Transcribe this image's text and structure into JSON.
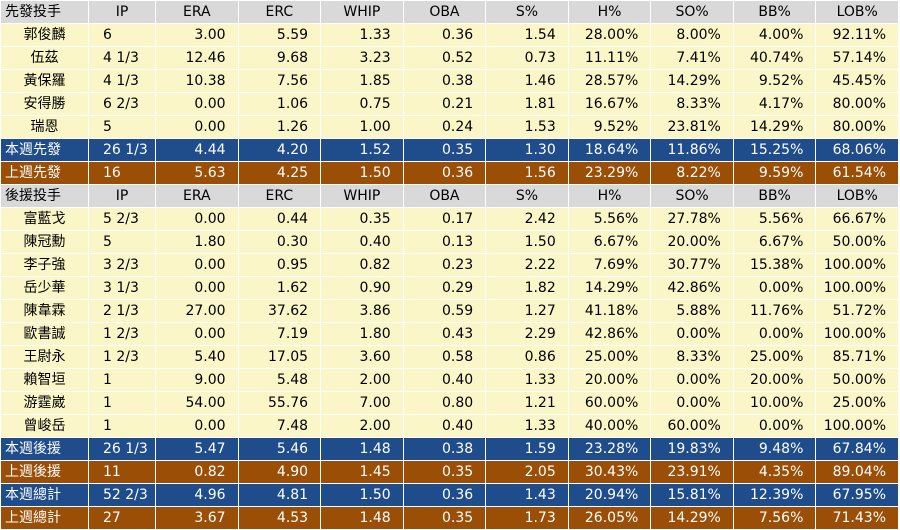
{
  "columns": [
    "IP",
    "ERA",
    "ERC",
    "WHIP",
    "OBA",
    "S%",
    "H%",
    "SO%",
    "BB%",
    "LOB%"
  ],
  "sections": [
    {
      "header": "先發投手",
      "rows": [
        {
          "name": "郭俊麟",
          "values": [
            "6",
            "3.00",
            "5.59",
            "1.33",
            "0.36",
            "1.54",
            "28.00%",
            "8.00%",
            "4.00%",
            "92.11%"
          ]
        },
        {
          "name": "伍茲",
          "values": [
            "4 1/3",
            "12.46",
            "9.68",
            "3.23",
            "0.52",
            "0.73",
            "11.11%",
            "7.41%",
            "40.74%",
            "57.14%"
          ]
        },
        {
          "name": "黃保羅",
          "values": [
            "4 1/3",
            "10.38",
            "7.56",
            "1.85",
            "0.38",
            "1.46",
            "28.57%",
            "14.29%",
            "9.52%",
            "45.45%"
          ]
        },
        {
          "name": "安得勝",
          "values": [
            "6 2/3",
            "0.00",
            "1.06",
            "0.75",
            "0.21",
            "1.81",
            "16.67%",
            "8.33%",
            "4.17%",
            "80.00%"
          ]
        },
        {
          "name": "瑞恩",
          "values": [
            "5",
            "0.00",
            "1.26",
            "1.00",
            "0.24",
            "1.53",
            "9.52%",
            "23.81%",
            "14.29%",
            "80.00%"
          ]
        }
      ],
      "summaries": [
        {
          "name": "本週先發",
          "style": "blue",
          "values": [
            "26 1/3",
            "4.44",
            "4.20",
            "1.52",
            "0.35",
            "1.30",
            "18.64%",
            "11.86%",
            "15.25%",
            "68.06%"
          ]
        },
        {
          "name": "上週先發",
          "style": "brown",
          "values": [
            "16",
            "5.63",
            "4.25",
            "1.50",
            "0.36",
            "1.56",
            "23.29%",
            "8.22%",
            "9.59%",
            "61.54%"
          ]
        }
      ]
    },
    {
      "header": "後援投手",
      "rows": [
        {
          "name": "富藍戈",
          "values": [
            "5 2/3",
            "0.00",
            "0.44",
            "0.35",
            "0.17",
            "2.42",
            "5.56%",
            "27.78%",
            "5.56%",
            "66.67%"
          ]
        },
        {
          "name": "陳冠勳",
          "values": [
            "5",
            "1.80",
            "0.30",
            "0.40",
            "0.13",
            "1.50",
            "6.67%",
            "20.00%",
            "6.67%",
            "50.00%"
          ]
        },
        {
          "name": "李子強",
          "values": [
            "3 2/3",
            "0.00",
            "0.95",
            "0.82",
            "0.23",
            "2.22",
            "7.69%",
            "30.77%",
            "15.38%",
            "100.00%"
          ]
        },
        {
          "name": "岳少華",
          "values": [
            "3 1/3",
            "0.00",
            "1.62",
            "0.90",
            "0.29",
            "1.82",
            "14.29%",
            "42.86%",
            "0.00%",
            "100.00%"
          ]
        },
        {
          "name": "陳韋霖",
          "values": [
            "2 1/3",
            "27.00",
            "37.62",
            "3.86",
            "0.59",
            "1.27",
            "41.18%",
            "5.88%",
            "11.76%",
            "51.72%"
          ]
        },
        {
          "name": "歐書誠",
          "values": [
            "1 2/3",
            "0.00",
            "7.19",
            "1.80",
            "0.43",
            "2.29",
            "42.86%",
            "0.00%",
            "0.00%",
            "100.00%"
          ]
        },
        {
          "name": "王尉永",
          "values": [
            "1 2/3",
            "5.40",
            "17.05",
            "3.60",
            "0.58",
            "0.86",
            "25.00%",
            "8.33%",
            "25.00%",
            "85.71%"
          ]
        },
        {
          "name": "賴智垣",
          "values": [
            "1",
            "9.00",
            "5.48",
            "2.00",
            "0.40",
            "1.33",
            "20.00%",
            "0.00%",
            "20.00%",
            "50.00%"
          ]
        },
        {
          "name": "游霆崴",
          "values": [
            "1",
            "54.00",
            "55.76",
            "7.00",
            "0.80",
            "1.21",
            "60.00%",
            "0.00%",
            "10.00%",
            "25.00%"
          ]
        },
        {
          "name": "曾峻岳",
          "values": [
            "1",
            "0.00",
            "7.48",
            "2.00",
            "0.40",
            "1.33",
            "40.00%",
            "60.00%",
            "0.00%",
            "100.00%"
          ]
        }
      ],
      "summaries": [
        {
          "name": "本週後援",
          "style": "blue",
          "values": [
            "26 1/3",
            "5.47",
            "5.46",
            "1.48",
            "0.38",
            "1.59",
            "23.28%",
            "19.83%",
            "9.48%",
            "67.84%"
          ]
        },
        {
          "name": "上週後援",
          "style": "brown",
          "values": [
            "11",
            "0.82",
            "4.90",
            "1.45",
            "0.35",
            "2.05",
            "30.43%",
            "23.91%",
            "4.35%",
            "89.04%"
          ]
        },
        {
          "name": "本週總計",
          "style": "blue",
          "values": [
            "52 2/3",
            "4.96",
            "4.81",
            "1.50",
            "0.36",
            "1.43",
            "20.94%",
            "15.81%",
            "12.39%",
            "67.95%"
          ]
        },
        {
          "name": "上週總計",
          "style": "brown",
          "values": [
            "27",
            "3.67",
            "4.53",
            "1.48",
            "0.35",
            "1.73",
            "26.05%",
            "14.29%",
            "7.56%",
            "71.43%"
          ]
        }
      ]
    }
  ],
  "colors": {
    "header_bg": "#d9d9d9",
    "row_bg": "#fbf6c8",
    "this_week_bg": "#1f4c8b",
    "last_week_bg": "#9b4e06"
  }
}
